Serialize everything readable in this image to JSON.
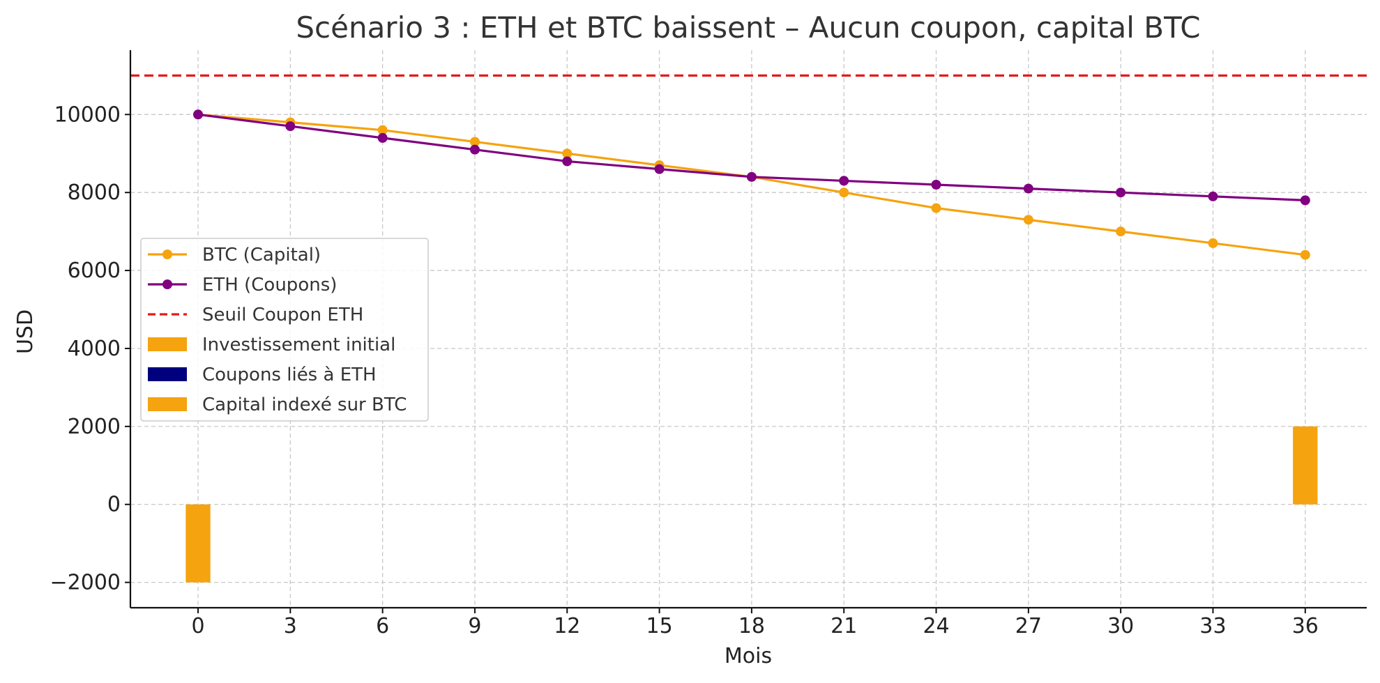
{
  "chart_data": {
    "type": "line",
    "title": "Scénario 3 : ETH et BTC baissent – Aucun coupon, capital BTC",
    "xlabel": "Mois",
    "ylabel": "USD",
    "x": [
      0,
      3,
      6,
      9,
      12,
      15,
      18,
      21,
      24,
      27,
      30,
      33,
      36
    ],
    "xlim": [
      -2.2,
      38
    ],
    "ylim": [
      -2650,
      11650
    ],
    "xticks": [
      0,
      3,
      6,
      9,
      12,
      15,
      18,
      21,
      24,
      27,
      30,
      33,
      36
    ],
    "yticks": [
      -2000,
      0,
      2000,
      4000,
      6000,
      8000,
      10000
    ],
    "ytick_labels": [
      "−2000",
      "0",
      "2000",
      "4000",
      "6000",
      "8000",
      "10000"
    ],
    "grid": true,
    "legend_position": "center-left",
    "series": [
      {
        "name": "BTC (Capital)",
        "kind": "line-marker",
        "color": "#f5a30f",
        "values": [
          10000,
          9800,
          9600,
          9300,
          9000,
          8700,
          8400,
          8000,
          7600,
          7300,
          7000,
          6700,
          6400
        ]
      },
      {
        "name": "ETH (Coupons)",
        "kind": "line-marker",
        "color": "#800080",
        "values": [
          10000,
          9700,
          9400,
          9100,
          8800,
          8600,
          8400,
          8300,
          8200,
          8100,
          8000,
          7900,
          7800
        ]
      }
    ],
    "threshold": {
      "name": "Seuil Coupon ETH",
      "value": 11000,
      "color": "#e31a1a",
      "style": "dashed"
    },
    "bars": [
      {
        "name": "Investissement initial",
        "color": "#f5a30f",
        "x": [
          0
        ],
        "values": [
          -2000
        ]
      },
      {
        "name": "Coupons liés à ETH",
        "color": "#00007f",
        "x": [],
        "values": []
      },
      {
        "name": "Capital indexé sur BTC",
        "color": "#f5a30f",
        "x": [
          36
        ],
        "values": [
          2000
        ]
      }
    ],
    "bar_width": 0.8
  }
}
